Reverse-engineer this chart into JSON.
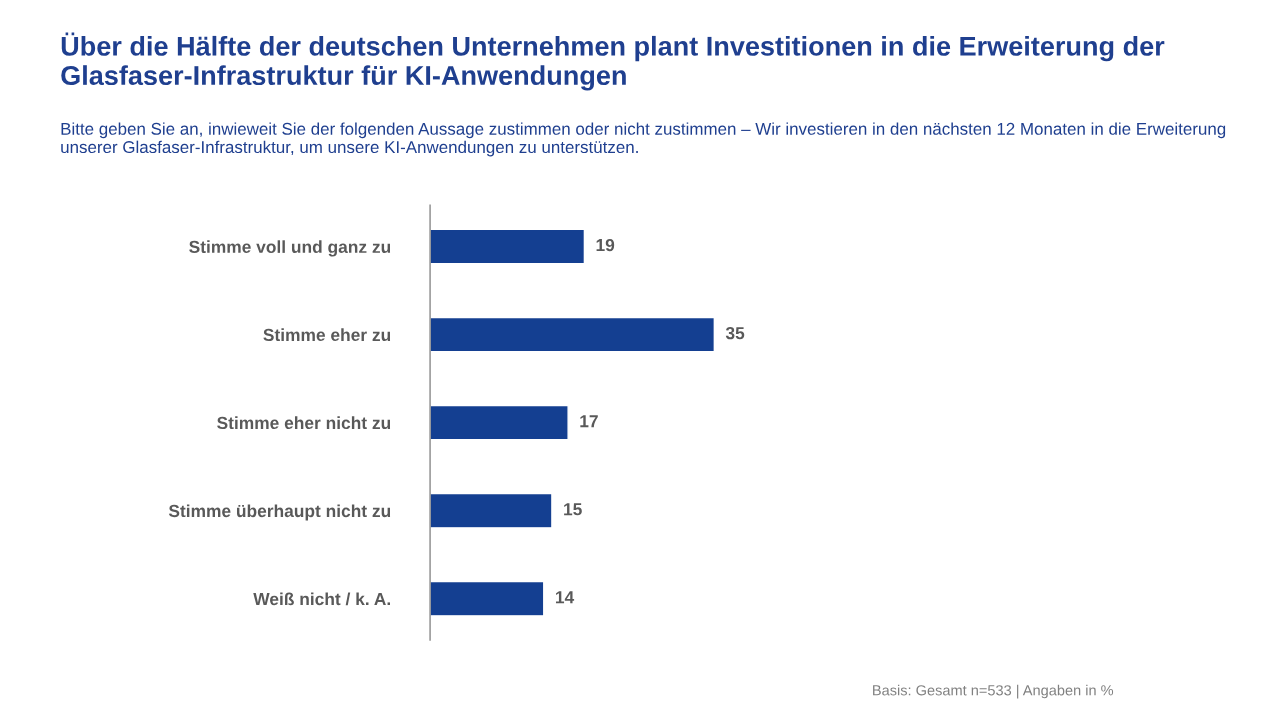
{
  "chart_data": {
    "type": "bar",
    "orientation": "horizontal",
    "title": "Über die Hälfte der deutschen Unternehmen plant Investitionen in die Erweiterung der Glasfaser-Infrastruktur für KI-Anwendungen",
    "subtitle": "Bitte geben Sie an, inwieweit Sie der folgenden Aussage zustimmen oder nicht zustimmen – Wir investieren in den nächsten 12 Monaten in die Erweiterung unserer Glasfaser-Infrastruktur, um unsere KI-Anwendungen zu unterstützen.",
    "categories": [
      "Stimme voll und ganz zu",
      "Stimme eher zu",
      "Stimme eher nicht zu",
      "Stimme überhaupt nicht zu",
      "Weiß nicht / k. A."
    ],
    "values": [
      19,
      35,
      17,
      15,
      14
    ],
    "color": "#143f91",
    "data_labels": true,
    "grid": false,
    "legend": false,
    "tick_labels": "y",
    "annotations": [
      "Basis: Gesamt n=533 | Angaben in %"
    ]
  }
}
